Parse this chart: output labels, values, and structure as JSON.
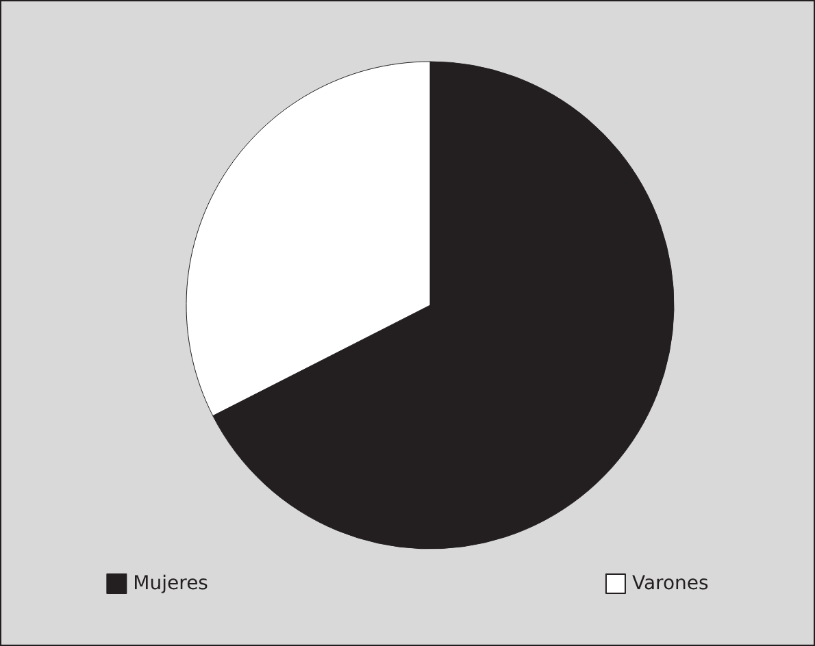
{
  "chart_data": {
    "type": "pie",
    "categories": [
      "Mujeres",
      "Varones"
    ],
    "values": [
      67.5,
      32.5
    ],
    "colors": [
      "#231f20",
      "#ffffff"
    ],
    "legend": "bottom"
  }
}
